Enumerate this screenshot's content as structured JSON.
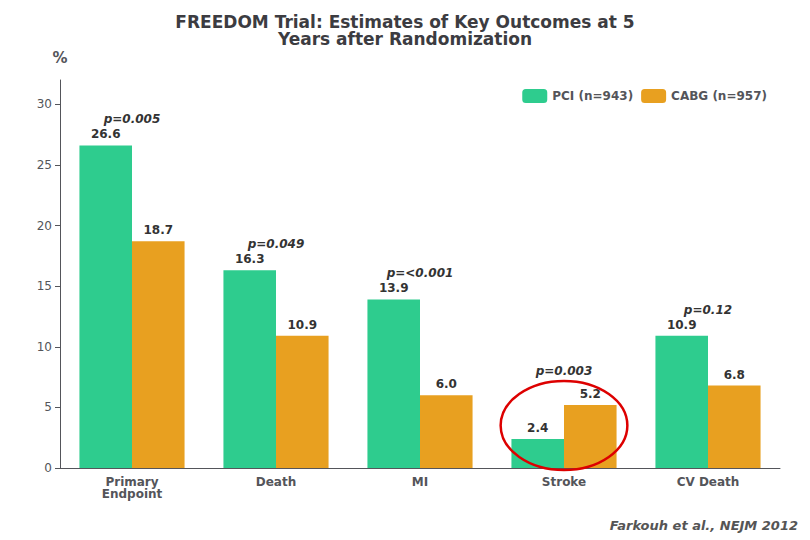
{
  "chart_data": {
    "type": "bar",
    "title": "FREEDOM Trial: Estimates of Key Outcomes at 5\nYears after Randomization",
    "y_label": "%",
    "categories": [
      "Primary\nEndpoint",
      "Death",
      "MI",
      "Stroke",
      "CV Death"
    ],
    "series": [
      {
        "name": "PCI (n=943)",
        "color": "#2ECC8E",
        "values": [
          26.6,
          16.3,
          13.9,
          2.4,
          10.9
        ]
      },
      {
        "name": "CABG (n=957)",
        "color": "#E8A020",
        "values": [
          18.7,
          10.9,
          6.0,
          5.2,
          6.8
        ],
        "value_labels": [
          "18.7",
          "10.9",
          "6.0",
          "5.2",
          "6.8"
        ]
      }
    ],
    "ylim": [
      0,
      32
    ],
    "yticks": [
      0,
      5,
      10,
      15,
      20,
      25,
      30
    ],
    "grid": false,
    "legend": "upper right",
    "data_labels": true,
    "annotations": [
      {
        "text": "p=0.005",
        "category": "Primary\nEndpoint"
      },
      {
        "text": "p=0.049",
        "category": "Death"
      },
      {
        "text": "p=<0.001",
        "category": "MI"
      },
      {
        "text": "p=0.003",
        "category": "Stroke",
        "circle_color": "#DD0000"
      },
      {
        "text": "p=0.12",
        "category": "CV Death"
      },
      {
        "text": "Farkouh et al., NEJM 2012"
      }
    ]
  }
}
